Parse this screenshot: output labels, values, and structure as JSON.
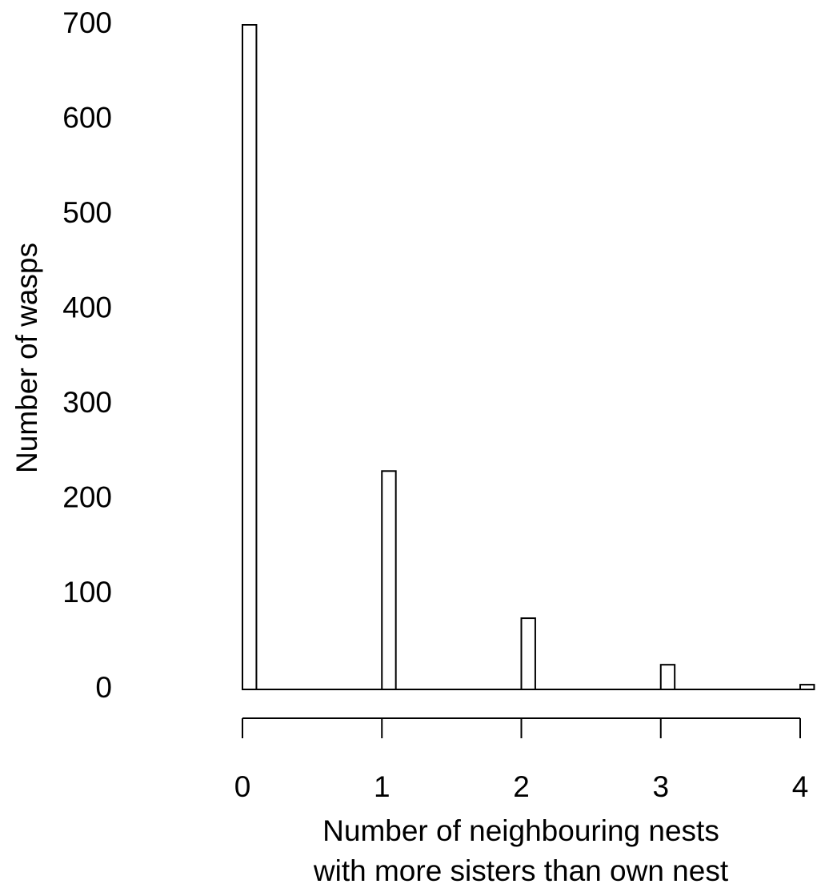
{
  "chart_data": {
    "type": "bar",
    "x_label": [
      "Number of neighbouring nests",
      "with more sisters than own nest"
    ],
    "y_label": "Number of wasps",
    "x": [
      0,
      1,
      2,
      3,
      4
    ],
    "values": [
      700,
      230,
      75,
      26,
      5
    ],
    "color": "#ffffff",
    "xlim": [
      0,
      4
    ],
    "xticks": [
      0,
      1,
      2,
      3,
      4
    ],
    "ylim": [
      0,
      700
    ],
    "yticks": [
      0,
      100,
      200,
      300,
      400,
      500,
      600,
      700
    ]
  }
}
